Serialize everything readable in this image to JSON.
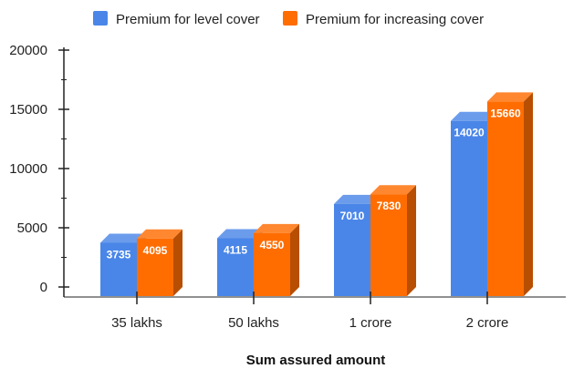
{
  "chart_data": {
    "type": "bar",
    "categories": [
      "35 lakhs",
      "50 lakhs",
      "1 crore",
      "2 crore"
    ],
    "series": [
      {
        "name": "Premium for level cover",
        "values": [
          3735,
          4115,
          7010,
          14020
        ],
        "color": "#4a86e8"
      },
      {
        "name": "Premium for increasing cover",
        "values": [
          4095,
          4550,
          7830,
          15660
        ],
        "color": "#ff6d01"
      }
    ],
    "xlabel": "Sum assured amount",
    "ylabel": "",
    "ylim": [
      0,
      20000
    ],
    "yticks": [
      "0",
      "5000",
      "10000",
      "15000",
      "20000"
    ],
    "legend_position": "top",
    "style": "3d"
  }
}
